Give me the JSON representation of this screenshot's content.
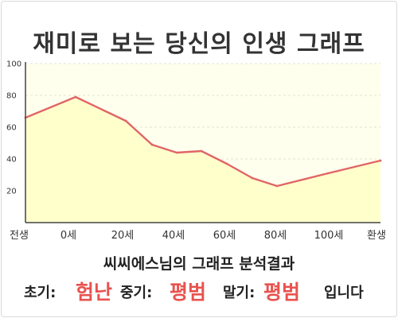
{
  "title": "재미로 보는 당신의 인생 그래프",
  "subtitle": "씨씨에스님의 그래프 분석결과",
  "result": {
    "early_label": "초기:",
    "early_value": "험난",
    "mid_label": "중기:",
    "mid_value": "평범",
    "late_label": "말기:",
    "late_value": "평범",
    "suffix": "입니다"
  },
  "colors": {
    "line": "#e06666",
    "fill": "#ffffcc",
    "accent": "#e8534f"
  },
  "chart_data": {
    "type": "area",
    "title": "재미로 보는 당신의 인생 그래프",
    "xlabel": "",
    "ylabel": "",
    "categories": [
      "전생",
      "0세",
      "20세",
      "40세",
      "60세",
      "80세",
      "100세",
      "환생"
    ],
    "ylim": [
      0,
      100
    ],
    "yticks": [
      20,
      40,
      60,
      80,
      100
    ],
    "grid": true,
    "series": [
      {
        "points": [
          {
            "x": "전생",
            "y": 66
          },
          {
            "x": "0세",
            "y": 79
          },
          {
            "x": "20세",
            "y": 64
          },
          {
            "x": "30세",
            "y": 49
          },
          {
            "x": "40세",
            "y": 44
          },
          {
            "x": "50세",
            "y": 45
          },
          {
            "x": "60세",
            "y": 37
          },
          {
            "x": "70세",
            "y": 28
          },
          {
            "x": "80세",
            "y": 23
          },
          {
            "x": "100세",
            "y": 31
          },
          {
            "x": "환생",
            "y": 39
          }
        ]
      }
    ]
  }
}
